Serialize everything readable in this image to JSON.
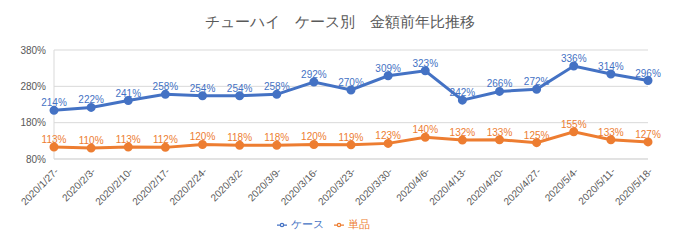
{
  "chart_data": {
    "type": "line",
    "title": "チューハイ　ケース別　金額前年比推移",
    "categories": [
      "2020/1/27-",
      "2020/2/3-",
      "2020/2/10-",
      "2020/2/17-",
      "2020/2/24-",
      "2020/3/2-",
      "2020/3/9-",
      "2020/3/16-",
      "2020/3/23-",
      "2020/3/30-",
      "2020/4/6-",
      "2020/4/13-",
      "2020/4/20-",
      "2020/4/27-",
      "2020/5/4-",
      "2020/5/11-",
      "2020/5/18-"
    ],
    "series": [
      {
        "name": "ケース",
        "color": "#4472c4",
        "marker": "circle",
        "values": [
          214,
          222,
          241,
          258,
          254,
          254,
          258,
          292,
          270,
          309,
          323,
          242,
          266,
          272,
          336,
          314,
          296
        ],
        "value_labels": [
          "214%",
          "222%",
          "241%",
          "258%",
          "254%",
          "254%",
          "258%",
          "292%",
          "270%",
          "309%",
          "323%",
          "242%",
          "266%",
          "272%",
          "336%",
          "314%",
          "296%"
        ]
      },
      {
        "name": "単品",
        "color": "#ed7d31",
        "marker": "circle",
        "values": [
          113,
          110,
          113,
          112,
          120,
          118,
          118,
          120,
          119,
          123,
          140,
          132,
          133,
          125,
          155,
          133,
          127
        ],
        "value_labels": [
          "113%",
          "110%",
          "113%",
          "112%",
          "120%",
          "118%",
          "118%",
          "120%",
          "119%",
          "123%",
          "140%",
          "132%",
          "133%",
          "125%",
          "155%",
          "133%",
          "127%"
        ]
      }
    ],
    "ylim": [
      80,
      380
    ],
    "yticks": [
      {
        "value": 80,
        "label": "80%"
      },
      {
        "value": 180,
        "label": "180%"
      },
      {
        "value": 280,
        "label": "280%"
      },
      {
        "value": 380,
        "label": "380%"
      }
    ],
    "grid": true,
    "legend": "bottom",
    "data_labels": true
  }
}
